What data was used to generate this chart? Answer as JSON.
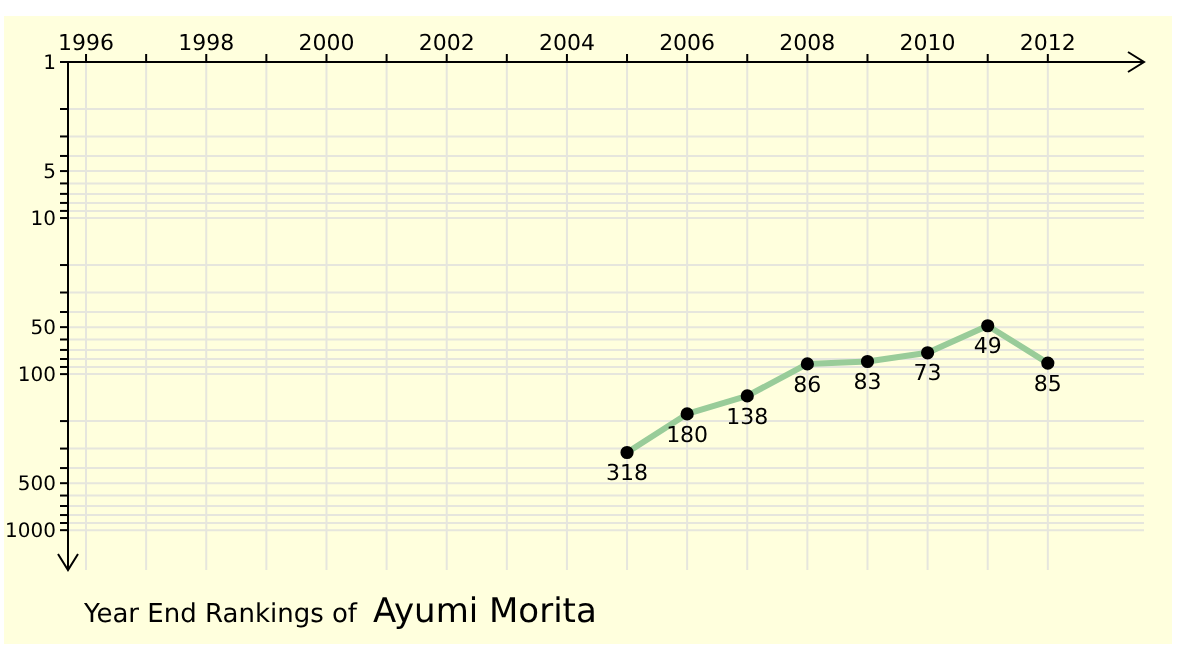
{
  "chart_data": {
    "type": "line",
    "title": "Year End Rankings of",
    "subtitle": "Ayumi Morita",
    "x": [
      2005,
      2006,
      2007,
      2008,
      2009,
      2010,
      2011,
      2012
    ],
    "values": [
      318,
      180,
      138,
      86,
      83,
      73,
      49,
      85
    ],
    "color": "#99cc99",
    "xlim": [
      1995.7,
      2013.6
    ],
    "xticks": [
      1996,
      {
        "value": 1997,
        "label": null
      },
      1998,
      {
        "value": 1999,
        "label": null
      },
      2000,
      {
        "value": 2001,
        "label": null
      },
      2002,
      {
        "value": 2003,
        "label": null
      },
      2004,
      {
        "value": 2005,
        "label": null
      },
      2006,
      {
        "value": 2007,
        "label": null
      },
      2008,
      {
        "value": 2009,
        "label": null
      },
      2010,
      {
        "value": 2011,
        "label": null
      },
      2012
    ],
    "ylim": [
      1800,
      1
    ],
    "yticks": [
      1,
      {
        "value": 2,
        "label": null
      },
      {
        "value": 3,
        "label": null
      },
      {
        "value": 4,
        "label": null
      },
      5,
      {
        "value": 6,
        "label": null
      },
      {
        "value": 7,
        "label": null
      },
      {
        "value": 8,
        "label": null
      },
      {
        "value": 9,
        "label": null
      },
      10,
      {
        "value": 20,
        "label": null
      },
      {
        "value": 30,
        "label": null
      },
      {
        "value": 40,
        "label": null
      },
      50,
      {
        "value": 60,
        "label": null
      },
      {
        "value": 70,
        "label": null
      },
      {
        "value": 80,
        "label": null
      },
      {
        "value": 90,
        "label": null
      },
      100,
      {
        "value": 200,
        "label": null
      },
      {
        "value": 300,
        "label": null
      },
      {
        "value": 400,
        "label": null
      },
      500,
      {
        "value": 600,
        "label": null
      },
      {
        "value": 700,
        "label": null
      },
      {
        "value": 800,
        "label": null
      },
      {
        "value": 900,
        "label": null
      },
      1000
    ],
    "log": "y",
    "grid": true,
    "marker": "circle",
    "data_labels": true
  }
}
